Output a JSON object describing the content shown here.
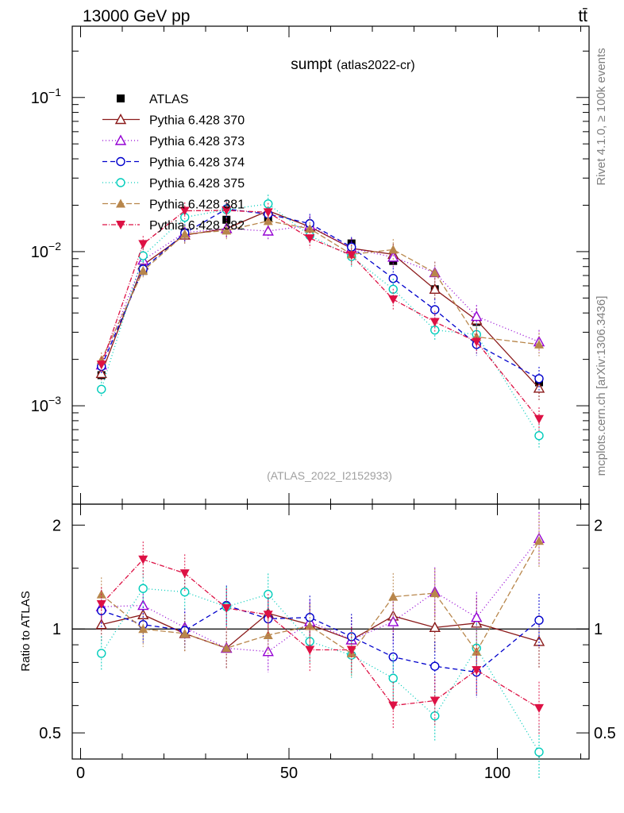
{
  "header": {
    "energy_label": "13000 GeV pp",
    "process_label": "tt̄"
  },
  "side": {
    "rivet_label": "Rivet 4.1.0, ≥ 100k events",
    "mcplots_label": "mcplots.cern.ch [arXiv:1306.3436]"
  },
  "chart_data": [
    {
      "type": "line",
      "panel": "main",
      "title": "sumpt",
      "subtitle": "(atlas2022-cr)",
      "watermark": "(ATLAS_2022_I2152933)",
      "yscale": "log",
      "xlim": [
        -2,
        122
      ],
      "ylim": [
        0.00023,
        0.29
      ],
      "ytick_labels": [
        {
          "base": "10",
          "exp": "−1",
          "value": 0.1
        },
        {
          "base": "10",
          "exp": "−2",
          "value": 0.01
        },
        {
          "base": "10",
          "exp": "−3",
          "value": 0.001
        }
      ],
      "x": [
        5,
        15,
        25,
        35,
        45,
        55,
        65,
        75,
        85,
        95,
        110
      ],
      "legend_position": "top-left",
      "series": [
        {
          "name": "ATLAS",
          "style": "data",
          "color": "#000000",
          "marker": "square-filled",
          "values": [
            0.00158,
            0.0075,
            0.0133,
            0.0161,
            0.0165,
            0.0141,
            0.0113,
            0.0087,
            0.0057,
            0.0035,
            0.00142
          ]
        },
        {
          "name": "Pythia 6.428 370",
          "color": "#8b1a1a",
          "dash": "",
          "marker": "triangle-up-open",
          "values": [
            0.00162,
            0.0082,
            0.0128,
            0.0141,
            0.0184,
            0.0145,
            0.0105,
            0.0096,
            0.0057,
            0.0036,
            0.0013
          ]
        },
        {
          "name": "Pythia 6.428 373",
          "color": "#9400d3",
          "dash": "1,3",
          "marker": "triangle-up-open",
          "values": [
            0.00184,
            0.0088,
            0.0133,
            0.0141,
            0.0136,
            0.0148,
            0.0105,
            0.0092,
            0.0073,
            0.0038,
            0.0026
          ]
        },
        {
          "name": "Pythia 6.428 374",
          "color": "#0000cc",
          "dash": "6,4",
          "marker": "circle-open",
          "values": [
            0.0018,
            0.0077,
            0.0132,
            0.0189,
            0.0175,
            0.0152,
            0.0107,
            0.0067,
            0.0042,
            0.0025,
            0.0015
          ]
        },
        {
          "name": "Pythia 6.428 375",
          "color": "#00ccbb",
          "dash": "1,3",
          "marker": "circle-open",
          "values": [
            0.00128,
            0.0094,
            0.0167,
            0.0187,
            0.0204,
            0.0127,
            0.0093,
            0.0057,
            0.0031,
            0.0029,
            0.00064
          ]
        },
        {
          "name": "Pythia 6.428 381",
          "color": "#b8864b",
          "dash": "7,3",
          "marker": "triangle-up-filled",
          "values": [
            0.00198,
            0.0075,
            0.013,
            0.0137,
            0.0158,
            0.0141,
            0.0096,
            0.0103,
            0.0073,
            0.0028,
            0.0025
          ]
        },
        {
          "name": "Pythia 6.428 382",
          "color": "#dd1144",
          "dash": "6,2,1,2",
          "marker": "triangle-down-filled",
          "values": [
            0.00185,
            0.0112,
            0.0184,
            0.0185,
            0.018,
            0.0122,
            0.0095,
            0.0049,
            0.0035,
            0.0026,
            0.00082
          ]
        }
      ]
    },
    {
      "type": "line",
      "panel": "ratio",
      "ylabel": "Ratio to ATLAS",
      "yscale": "log",
      "xlim": [
        -2,
        122
      ],
      "ylim": [
        0.42,
        2.3
      ],
      "yticks": [
        0.5,
        1,
        2
      ],
      "ytick_labels": [
        "0.5",
        "1",
        "2"
      ],
      "xticks": [
        0,
        50,
        100
      ],
      "xtick_labels": [
        "0",
        "50",
        "100"
      ],
      "reference_line": 1,
      "x": [
        5,
        15,
        25,
        35,
        45,
        55,
        65,
        75,
        85,
        95,
        110
      ],
      "series": [
        {
          "name": "Pythia 6.428 370",
          "values": [
            1.03,
            1.1,
            0.97,
            0.88,
            1.11,
            1.03,
            0.93,
            1.09,
            1.01,
            1.04,
            0.92
          ]
        },
        {
          "name": "Pythia 6.428 373",
          "values": [
            1.16,
            1.17,
            1.01,
            0.88,
            0.86,
            1.05,
            0.93,
            1.05,
            1.28,
            1.08,
            1.83
          ]
        },
        {
          "name": "Pythia 6.428 374",
          "values": [
            1.13,
            1.03,
            0.99,
            1.17,
            1.07,
            1.08,
            0.95,
            0.83,
            0.78,
            0.75,
            1.06
          ]
        },
        {
          "name": "Pythia 6.428 375",
          "values": [
            0.85,
            1.31,
            1.28,
            1.16,
            1.26,
            0.92,
            0.84,
            0.72,
            0.56,
            0.88,
            0.44
          ]
        },
        {
          "name": "Pythia 6.428 381",
          "values": [
            1.26,
            1.0,
            0.97,
            0.88,
            0.96,
            1.02,
            0.85,
            1.24,
            1.27,
            0.86,
            1.8
          ]
        },
        {
          "name": "Pythia 6.428 382",
          "values": [
            1.18,
            1.59,
            1.45,
            1.15,
            1.1,
            0.87,
            0.87,
            0.6,
            0.62,
            0.76,
            0.59
          ]
        }
      ]
    }
  ]
}
